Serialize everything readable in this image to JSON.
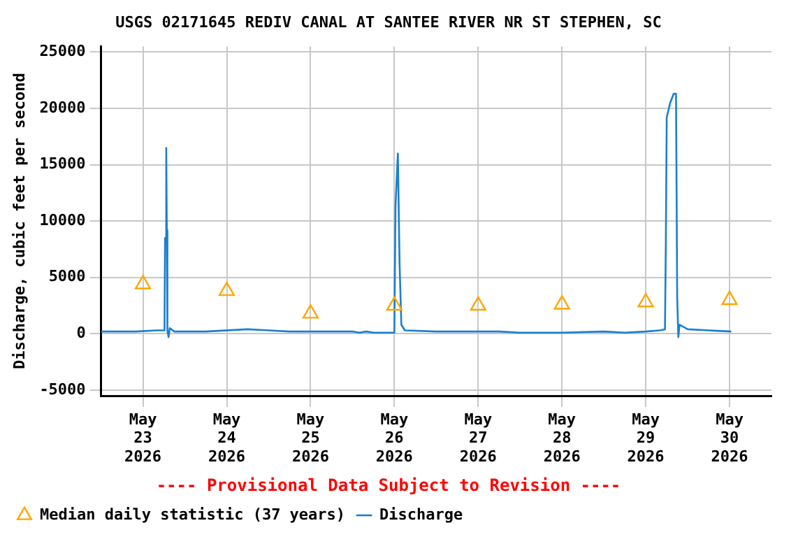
{
  "chart_data": {
    "type": "line",
    "title": "USGS 02171645 REDIV CANAL AT SANTEE RIVER NR ST STEPHEN, SC",
    "ylabel": "Discharge, cubic feet per second",
    "annotations": [
      "---- Provisional Data Subject to Revision ----"
    ],
    "xlim": [
      "2026-05-22T12:00",
      "2026-05-30T12:00"
    ],
    "xticks": [
      {
        "value": "2026-05-23",
        "label": "May 23 2026"
      },
      {
        "value": "2026-05-24",
        "label": "May 24 2026"
      },
      {
        "value": "2026-05-25",
        "label": "May 25 2026"
      },
      {
        "value": "2026-05-26",
        "label": "May 26 2026"
      },
      {
        "value": "2026-05-27",
        "label": "May 27 2026"
      },
      {
        "value": "2026-05-28",
        "label": "May 28 2026"
      },
      {
        "value": "2026-05-29",
        "label": "May 29 2026"
      },
      {
        "value": "2026-05-30",
        "label": "May 30 2026"
      }
    ],
    "ylim": [
      -5500,
      25500
    ],
    "yticks": [
      -5000,
      0,
      5000,
      10000,
      15000,
      20000,
      25000
    ],
    "grid": true,
    "legend": "bottom",
    "series": [
      {
        "name": "Median daily statistic (37 years)",
        "type": "scatter",
        "marker": "triangle",
        "color": "#ffa500",
        "x": [
          "2026-05-23",
          "2026-05-24",
          "2026-05-25",
          "2026-05-26",
          "2026-05-27",
          "2026-05-28",
          "2026-05-29",
          "2026-05-30"
        ],
        "values": [
          4400,
          3800,
          1800,
          2500,
          2500,
          2600,
          2800,
          3000
        ]
      },
      {
        "name": "Discharge",
        "marker": "none",
        "color": "#1a7fd0",
        "x": [
          "2026-05-22T12:00",
          "2026-05-22T16:00",
          "2026-05-22T22:00",
          "2026-05-23T04:00",
          "2026-05-23T06:10",
          "2026-05-23T06:20",
          "2026-05-23T06:40",
          "2026-05-23T06:50",
          "2026-05-23T07:00",
          "2026-05-23T07:20",
          "2026-05-23T07:40",
          "2026-05-23T09:00",
          "2026-05-23T18:00",
          "2026-05-24T06:00",
          "2026-05-24T12:00",
          "2026-05-24T18:00",
          "2026-05-25T06:00",
          "2026-05-25T12:00",
          "2026-05-25T14:00",
          "2026-05-25T16:00",
          "2026-05-25T18:00",
          "2026-05-26T00:00",
          "2026-05-26T00:20",
          "2026-05-26T01:00",
          "2026-05-26T01:30",
          "2026-05-26T02:00",
          "2026-05-26T03:00",
          "2026-05-26T12:00",
          "2026-05-26T18:00",
          "2026-05-27T06:00",
          "2026-05-27T12:00",
          "2026-05-27T18:00",
          "2026-05-28T00:00",
          "2026-05-28T12:00",
          "2026-05-28T18:00",
          "2026-05-29T00:00",
          "2026-05-29T04:00",
          "2026-05-29T05:30",
          "2026-05-29T05:45",
          "2026-05-29T06:00",
          "2026-05-29T07:00",
          "2026-05-29T08:00",
          "2026-05-29T08:40",
          "2026-05-29T09:00",
          "2026-05-29T09:20",
          "2026-05-29T09:40",
          "2026-05-29T12:00",
          "2026-05-29T18:00",
          "2026-05-30T00:30"
        ],
        "values": [
          200,
          200,
          200,
          300,
          300,
          8500,
          16500,
          9200,
          300,
          -300,
          500,
          200,
          200,
          400,
          300,
          200,
          200,
          200,
          100,
          200,
          100,
          100,
          11400,
          16000,
          6100,
          800,
          300,
          200,
          200,
          200,
          100,
          100,
          100,
          200,
          100,
          200,
          300,
          400,
          8000,
          19200,
          20500,
          21300,
          21300,
          3300,
          -300,
          800,
          400,
          300,
          200
        ]
      }
    ]
  }
}
